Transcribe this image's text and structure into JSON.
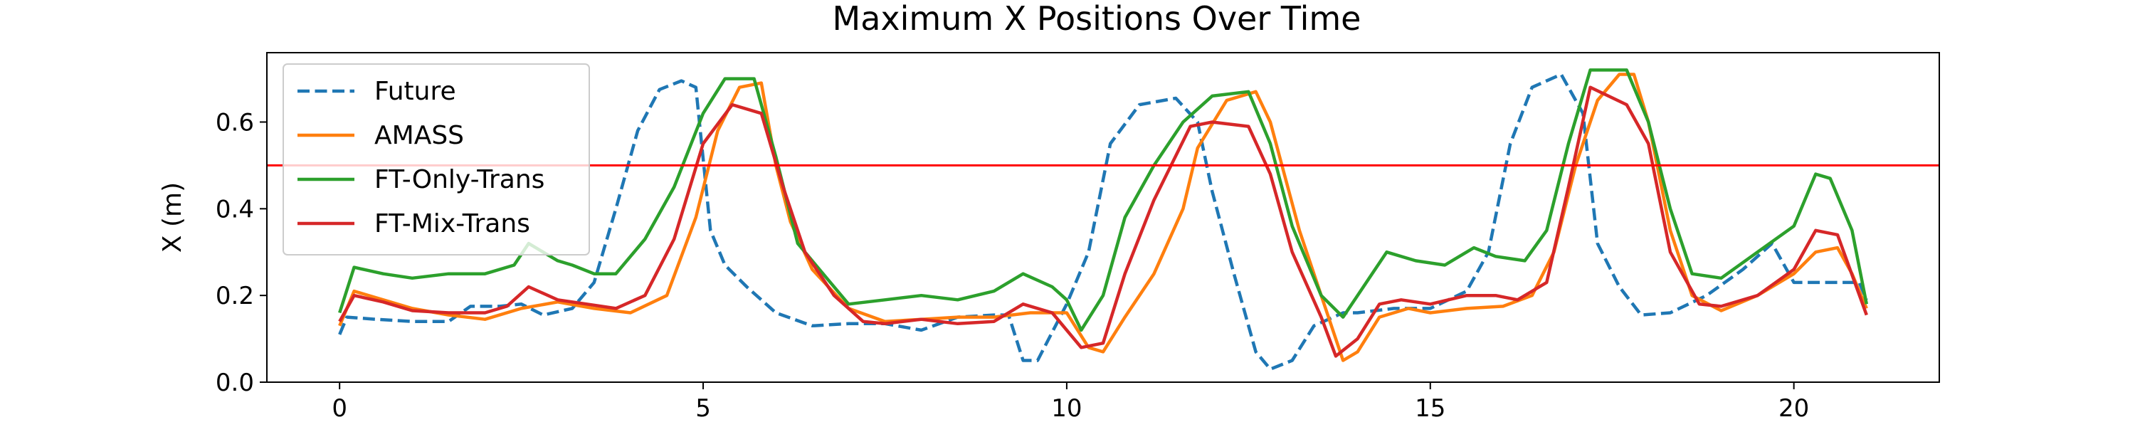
{
  "chart_data": {
    "type": "line",
    "title": "Maximum X Positions Over Time",
    "xlabel": "",
    "ylabel": "X (m)",
    "xlim": [
      -1.0,
      22.0
    ],
    "ylim": [
      0.0,
      0.76
    ],
    "xticks": [
      0,
      5,
      10,
      15,
      20
    ],
    "yticks": [
      0.0,
      0.2,
      0.4,
      0.6
    ],
    "grid": false,
    "legend_position": "upper-left",
    "threshold": {
      "y": 0.5,
      "color": "#ff0000"
    },
    "series": [
      {
        "name": "Future",
        "color": "#1f77b4",
        "dash": true,
        "points": [
          [
            0,
            0.11
          ],
          [
            0.1,
            0.15
          ],
          [
            0.5,
            0.145
          ],
          [
            1,
            0.14
          ],
          [
            1.5,
            0.14
          ],
          [
            1.8,
            0.175
          ],
          [
            2.2,
            0.175
          ],
          [
            2.5,
            0.18
          ],
          [
            2.8,
            0.155
          ],
          [
            3.2,
            0.17
          ],
          [
            3.5,
            0.23
          ],
          [
            3.8,
            0.4
          ],
          [
            4.1,
            0.58
          ],
          [
            4.4,
            0.675
          ],
          [
            4.7,
            0.695
          ],
          [
            4.9,
            0.68
          ],
          [
            5.1,
            0.35
          ],
          [
            5.3,
            0.27
          ],
          [
            5.6,
            0.22
          ],
          [
            6,
            0.16
          ],
          [
            6.5,
            0.13
          ],
          [
            7,
            0.135
          ],
          [
            7.5,
            0.135
          ],
          [
            8,
            0.12
          ],
          [
            8.5,
            0.15
          ],
          [
            9,
            0.155
          ],
          [
            9.2,
            0.155
          ],
          [
            9.4,
            0.05
          ],
          [
            9.6,
            0.05
          ],
          [
            10,
            0.18
          ],
          [
            10.3,
            0.3
          ],
          [
            10.6,
            0.55
          ],
          [
            11,
            0.64
          ],
          [
            11.5,
            0.655
          ],
          [
            11.8,
            0.6
          ],
          [
            12,
            0.44
          ],
          [
            12.3,
            0.25
          ],
          [
            12.6,
            0.07
          ],
          [
            12.8,
            0.03
          ],
          [
            13.1,
            0.05
          ],
          [
            13.4,
            0.13
          ],
          [
            13.8,
            0.16
          ],
          [
            14,
            0.16
          ],
          [
            14.5,
            0.17
          ],
          [
            15,
            0.17
          ],
          [
            15.5,
            0.21
          ],
          [
            15.8,
            0.3
          ],
          [
            16.1,
            0.55
          ],
          [
            16.4,
            0.68
          ],
          [
            16.8,
            0.71
          ],
          [
            17.1,
            0.62
          ],
          [
            17.3,
            0.32
          ],
          [
            17.6,
            0.22
          ],
          [
            17.9,
            0.155
          ],
          [
            18.3,
            0.16
          ],
          [
            18.8,
            0.2
          ],
          [
            19.3,
            0.26
          ],
          [
            19.7,
            0.32
          ],
          [
            20,
            0.23
          ],
          [
            20.5,
            0.23
          ],
          [
            20.9,
            0.23
          ],
          [
            21,
            0.19
          ]
        ]
      },
      {
        "name": "AMASS",
        "color": "#ff7f0e",
        "dash": false,
        "points": [
          [
            0,
            0.13
          ],
          [
            0.2,
            0.21
          ],
          [
            0.6,
            0.19
          ],
          [
            1,
            0.17
          ],
          [
            1.5,
            0.155
          ],
          [
            2,
            0.145
          ],
          [
            2.5,
            0.17
          ],
          [
            3,
            0.185
          ],
          [
            3.5,
            0.17
          ],
          [
            4,
            0.16
          ],
          [
            4.5,
            0.2
          ],
          [
            4.9,
            0.38
          ],
          [
            5.2,
            0.58
          ],
          [
            5.5,
            0.68
          ],
          [
            5.8,
            0.69
          ],
          [
            6,
            0.5
          ],
          [
            6.2,
            0.37
          ],
          [
            6.5,
            0.26
          ],
          [
            7,
            0.17
          ],
          [
            7.5,
            0.14
          ],
          [
            8,
            0.145
          ],
          [
            8.5,
            0.15
          ],
          [
            9,
            0.15
          ],
          [
            9.5,
            0.16
          ],
          [
            10,
            0.16
          ],
          [
            10.3,
            0.08
          ],
          [
            10.5,
            0.07
          ],
          [
            10.8,
            0.15
          ],
          [
            11.2,
            0.25
          ],
          [
            11.6,
            0.4
          ],
          [
            11.8,
            0.54
          ],
          [
            12.2,
            0.65
          ],
          [
            12.6,
            0.67
          ],
          [
            12.8,
            0.6
          ],
          [
            13.2,
            0.35
          ],
          [
            13.5,
            0.2
          ],
          [
            13.8,
            0.05
          ],
          [
            14,
            0.07
          ],
          [
            14.3,
            0.15
          ],
          [
            14.7,
            0.17
          ],
          [
            15,
            0.16
          ],
          [
            15.5,
            0.17
          ],
          [
            16,
            0.175
          ],
          [
            16.4,
            0.2
          ],
          [
            16.7,
            0.3
          ],
          [
            17,
            0.5
          ],
          [
            17.3,
            0.65
          ],
          [
            17.6,
            0.71
          ],
          [
            17.8,
            0.71
          ],
          [
            18,
            0.6
          ],
          [
            18.3,
            0.35
          ],
          [
            18.6,
            0.2
          ],
          [
            19,
            0.165
          ],
          [
            19.5,
            0.2
          ],
          [
            20,
            0.25
          ],
          [
            20.3,
            0.3
          ],
          [
            20.6,
            0.31
          ],
          [
            20.8,
            0.25
          ],
          [
            21,
            0.17
          ]
        ]
      },
      {
        "name": "FT-Only-Trans",
        "color": "#2ca02c",
        "dash": false,
        "points": [
          [
            0,
            0.16
          ],
          [
            0.2,
            0.265
          ],
          [
            0.6,
            0.25
          ],
          [
            1,
            0.24
          ],
          [
            1.5,
            0.25
          ],
          [
            2,
            0.25
          ],
          [
            2.4,
            0.27
          ],
          [
            2.6,
            0.32
          ],
          [
            3,
            0.28
          ],
          [
            3.2,
            0.27
          ],
          [
            3.5,
            0.25
          ],
          [
            3.8,
            0.25
          ],
          [
            4.2,
            0.33
          ],
          [
            4.6,
            0.45
          ],
          [
            5,
            0.62
          ],
          [
            5.3,
            0.7
          ],
          [
            5.7,
            0.7
          ],
          [
            6,
            0.52
          ],
          [
            6.3,
            0.32
          ],
          [
            6.7,
            0.24
          ],
          [
            7,
            0.18
          ],
          [
            7.5,
            0.19
          ],
          [
            8,
            0.2
          ],
          [
            8.5,
            0.19
          ],
          [
            9,
            0.21
          ],
          [
            9.4,
            0.25
          ],
          [
            9.8,
            0.22
          ],
          [
            10,
            0.19
          ],
          [
            10.2,
            0.12
          ],
          [
            10.5,
            0.2
          ],
          [
            10.8,
            0.38
          ],
          [
            11.2,
            0.5
          ],
          [
            11.6,
            0.6
          ],
          [
            12,
            0.66
          ],
          [
            12.5,
            0.67
          ],
          [
            12.8,
            0.55
          ],
          [
            13.1,
            0.36
          ],
          [
            13.5,
            0.2
          ],
          [
            13.8,
            0.15
          ],
          [
            14,
            0.2
          ],
          [
            14.4,
            0.3
          ],
          [
            14.8,
            0.28
          ],
          [
            15.2,
            0.27
          ],
          [
            15.6,
            0.31
          ],
          [
            15.9,
            0.29
          ],
          [
            16.3,
            0.28
          ],
          [
            16.6,
            0.35
          ],
          [
            16.9,
            0.55
          ],
          [
            17.2,
            0.72
          ],
          [
            17.7,
            0.72
          ],
          [
            18,
            0.6
          ],
          [
            18.3,
            0.4
          ],
          [
            18.6,
            0.25
          ],
          [
            19,
            0.24
          ],
          [
            19.5,
            0.3
          ],
          [
            20,
            0.36
          ],
          [
            20.3,
            0.48
          ],
          [
            20.5,
            0.47
          ],
          [
            20.8,
            0.35
          ],
          [
            21,
            0.18
          ]
        ]
      },
      {
        "name": "FT-Mix-Trans",
        "color": "#d62728",
        "dash": false,
        "points": [
          [
            0,
            0.14
          ],
          [
            0.2,
            0.2
          ],
          [
            0.6,
            0.185
          ],
          [
            1,
            0.165
          ],
          [
            1.5,
            0.16
          ],
          [
            2,
            0.16
          ],
          [
            2.3,
            0.175
          ],
          [
            2.6,
            0.22
          ],
          [
            3,
            0.19
          ],
          [
            3.4,
            0.18
          ],
          [
            3.8,
            0.17
          ],
          [
            4.2,
            0.2
          ],
          [
            4.6,
            0.33
          ],
          [
            5,
            0.55
          ],
          [
            5.4,
            0.64
          ],
          [
            5.8,
            0.62
          ],
          [
            6.1,
            0.45
          ],
          [
            6.4,
            0.3
          ],
          [
            6.8,
            0.2
          ],
          [
            7.2,
            0.14
          ],
          [
            7.5,
            0.135
          ],
          [
            8,
            0.145
          ],
          [
            8.5,
            0.135
          ],
          [
            9,
            0.14
          ],
          [
            9.4,
            0.18
          ],
          [
            9.8,
            0.16
          ],
          [
            10.2,
            0.08
          ],
          [
            10.5,
            0.09
          ],
          [
            10.8,
            0.25
          ],
          [
            11.2,
            0.42
          ],
          [
            11.7,
            0.59
          ],
          [
            12,
            0.6
          ],
          [
            12.5,
            0.59
          ],
          [
            12.8,
            0.48
          ],
          [
            13.1,
            0.3
          ],
          [
            13.5,
            0.15
          ],
          [
            13.7,
            0.06
          ],
          [
            14,
            0.1
          ],
          [
            14.3,
            0.18
          ],
          [
            14.6,
            0.19
          ],
          [
            15,
            0.18
          ],
          [
            15.5,
            0.2
          ],
          [
            15.9,
            0.2
          ],
          [
            16.2,
            0.19
          ],
          [
            16.6,
            0.23
          ],
          [
            16.9,
            0.45
          ],
          [
            17.2,
            0.68
          ],
          [
            17.7,
            0.64
          ],
          [
            18,
            0.55
          ],
          [
            18.3,
            0.3
          ],
          [
            18.7,
            0.18
          ],
          [
            19,
            0.175
          ],
          [
            19.5,
            0.2
          ],
          [
            20,
            0.26
          ],
          [
            20.3,
            0.35
          ],
          [
            20.6,
            0.34
          ],
          [
            21,
            0.155
          ]
        ]
      }
    ]
  }
}
